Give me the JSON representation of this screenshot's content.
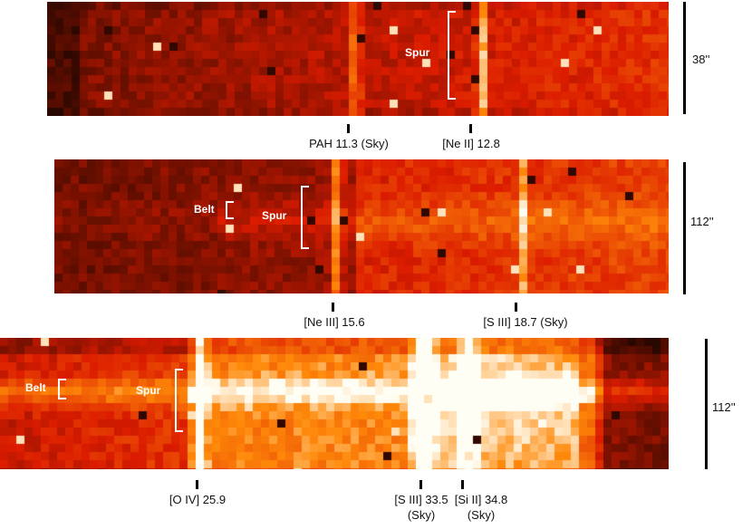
{
  "panels": [
    {
      "scale": "38''",
      "region_labels": [
        "Spur"
      ],
      "lines": [
        {
          "label": "PAH 11.3 (Sky)"
        },
        {
          "label": "[Ne II] 12.8"
        }
      ]
    },
    {
      "scale": "112''",
      "region_labels": [
        "Belt",
        "Spur"
      ],
      "lines": [
        {
          "label": "[Ne III] 15.6"
        },
        {
          "label": "[S III] 18.7 (Sky)"
        }
      ]
    },
    {
      "scale": "112''",
      "region_labels": [
        "Belt",
        "Spur"
      ],
      "lines": [
        {
          "label": "[O IV] 25.9"
        },
        {
          "label": "[S III] 33.5",
          "sub": "(Sky)"
        },
        {
          "label": "[Si  II] 34.8",
          "sub": "(Sky)"
        }
      ]
    }
  ]
}
